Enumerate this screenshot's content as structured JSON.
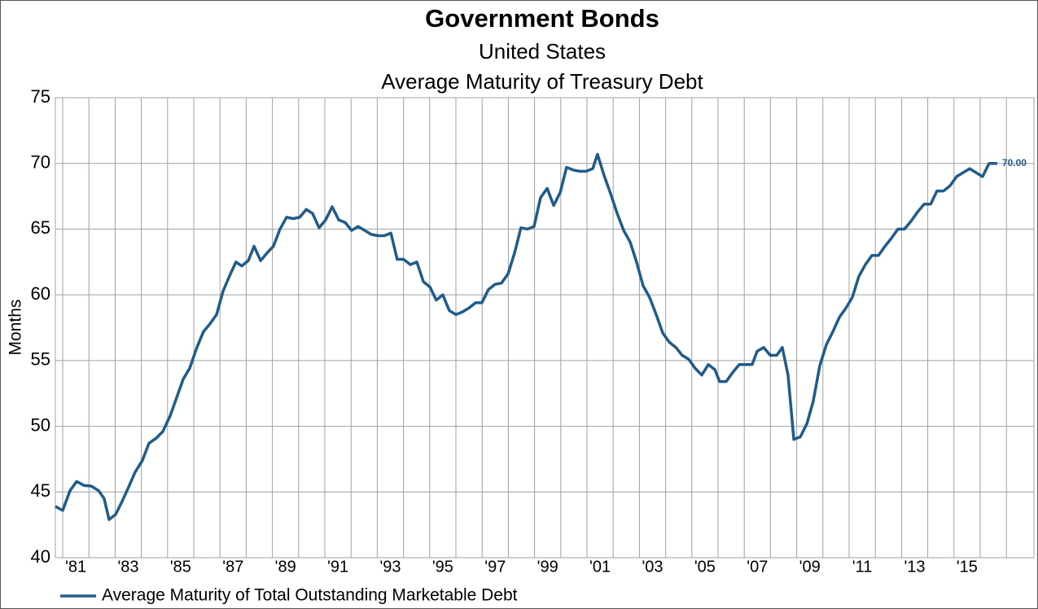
{
  "chart_data": {
    "type": "line",
    "title": "Government Bonds",
    "subtitle": [
      "United States",
      "Average Maturity of Treasury Debt"
    ],
    "y_label": "Months",
    "ylim": [
      40,
      75
    ],
    "yticks": [
      40,
      45,
      50,
      55,
      60,
      65,
      70,
      75
    ],
    "xlim": [
      1980.72,
      2018.05
    ],
    "xticks": [
      {
        "value": 1981.5,
        "label": "'81"
      },
      {
        "value": 1983.5,
        "label": "'83"
      },
      {
        "value": 1985.5,
        "label": "'85"
      },
      {
        "value": 1987.5,
        "label": "'87"
      },
      {
        "value": 1989.5,
        "label": "'89"
      },
      {
        "value": 1991.5,
        "label": "'91"
      },
      {
        "value": 1993.5,
        "label": "'93"
      },
      {
        "value": 1995.5,
        "label": "'95"
      },
      {
        "value": 1997.5,
        "label": "'97"
      },
      {
        "value": 1999.5,
        "label": "'99"
      },
      {
        "value": 2001.5,
        "label": "'01"
      },
      {
        "value": 2003.5,
        "label": "'03"
      },
      {
        "value": 2005.5,
        "label": "'05"
      },
      {
        "value": 2007.5,
        "label": "'07"
      },
      {
        "value": 2009.5,
        "label": "'09"
      },
      {
        "value": 2011.5,
        "label": "'11"
      },
      {
        "value": 2013.5,
        "label": "'13"
      },
      {
        "value": 2015.5,
        "label": "'15"
      }
    ],
    "xminorticks": [
      1981,
      1982,
      1983,
      1984,
      1985,
      1986,
      1987,
      1988,
      1989,
      1990,
      1991,
      1992,
      1993,
      1994,
      1995,
      1996,
      1997,
      1998,
      1999,
      2000,
      2001,
      2002,
      2003,
      2004,
      2005,
      2006,
      2007,
      2008,
      2009,
      2010,
      2011,
      2012,
      2013,
      2014,
      2015,
      2016,
      2017
    ],
    "grid": true,
    "legend": "bottom-left",
    "series": [
      {
        "name": "Average Maturity of Total Outstanding Marketable Debt",
        "color": "#1f5c8b",
        "x": [
          1980.72,
          1981.0,
          1981.28,
          1981.53,
          1981.81,
          1982.09,
          1982.37,
          1982.58,
          1982.77,
          1983.02,
          1983.27,
          1983.52,
          1983.76,
          1984.04,
          1984.29,
          1984.57,
          1984.82,
          1985.1,
          1985.35,
          1985.6,
          1985.84,
          1986.12,
          1986.37,
          1986.62,
          1986.87,
          1987.12,
          1987.4,
          1987.61,
          1987.83,
          1988.08,
          1988.3,
          1988.55,
          1988.8,
          1989.04,
          1989.29,
          1989.54,
          1989.79,
          1990.04,
          1990.29,
          1990.53,
          1990.78,
          1991.03,
          1991.28,
          1991.53,
          1991.78,
          1992.02,
          1992.27,
          1992.52,
          1992.77,
          1993.02,
          1993.27,
          1993.52,
          1993.76,
          1994.01,
          1994.26,
          1994.51,
          1994.76,
          1995.01,
          1995.25,
          1995.5,
          1995.75,
          1996.0,
          1996.25,
          1996.5,
          1996.75,
          1996.99,
          1997.24,
          1997.49,
          1997.74,
          1997.99,
          1998.24,
          1998.48,
          1998.73,
          1998.98,
          1999.23,
          1999.48,
          1999.73,
          1999.98,
          2000.22,
          2000.47,
          2000.72,
          2000.97,
          2001.22,
          2001.4,
          2001.65,
          2001.9,
          2002.15,
          2002.4,
          2002.65,
          2002.89,
          2003.14,
          2003.39,
          2003.64,
          2003.89,
          2004.14,
          2004.39,
          2004.63,
          2004.88,
          2005.13,
          2005.38,
          2005.63,
          2005.88,
          2006.06,
          2006.31,
          2006.56,
          2006.81,
          2007.06,
          2007.3,
          2007.49,
          2007.74,
          2007.99,
          2008.24,
          2008.45,
          2008.67,
          2008.89,
          2009.14,
          2009.39,
          2009.63,
          2009.88,
          2010.13,
          2010.38,
          2010.63,
          2010.88,
          2011.12,
          2011.37,
          2011.62,
          2011.87,
          2012.12,
          2012.37,
          2012.61,
          2012.86,
          2013.11,
          2013.36,
          2013.61,
          2013.86,
          2014.11,
          2014.35,
          2014.6,
          2014.85,
          2015.1,
          2015.35,
          2015.6,
          2015.84,
          2016.09,
          2016.34,
          2016.65
        ],
        "values": [
          43.9,
          43.6,
          45.1,
          45.8,
          45.5,
          45.45,
          45.1,
          44.5,
          42.9,
          43.3,
          44.3,
          45.4,
          46.5,
          47.4,
          48.7,
          49.1,
          49.6,
          50.8,
          52.2,
          53.6,
          54.4,
          56.0,
          57.2,
          57.8,
          58.5,
          60.3,
          61.6,
          62.5,
          62.2,
          62.6,
          63.7,
          62.6,
          63.2,
          63.7,
          65.0,
          65.9,
          65.8,
          65.9,
          66.5,
          66.2,
          65.1,
          65.7,
          66.7,
          65.7,
          65.5,
          64.9,
          65.2,
          64.9,
          64.6,
          64.5,
          64.5,
          64.7,
          62.7,
          62.7,
          62.3,
          62.5,
          61.0,
          60.6,
          59.6,
          60.0,
          58.8,
          58.5,
          58.7,
          59.0,
          59.4,
          59.4,
          60.4,
          60.8,
          60.9,
          61.6,
          63.2,
          65.1,
          65.0,
          65.2,
          67.4,
          68.1,
          66.8,
          67.8,
          69.7,
          69.5,
          69.4,
          69.4,
          69.6,
          70.7,
          69.1,
          67.7,
          66.2,
          64.9,
          64.0,
          62.5,
          60.7,
          59.8,
          58.5,
          57.1,
          56.4,
          56.0,
          55.4,
          55.1,
          54.4,
          53.9,
          54.7,
          54.3,
          53.4,
          53.4,
          54.1,
          54.7,
          54.7,
          54.7,
          55.7,
          56.0,
          55.4,
          55.4,
          56.0,
          53.9,
          49.0,
          49.2,
          50.2,
          51.9,
          54.6,
          56.2,
          57.2,
          58.3,
          59.0,
          59.8,
          61.4,
          62.3,
          63.0,
          63.0,
          63.7,
          64.3,
          65.0,
          65.0,
          65.6,
          66.3,
          66.9,
          66.9,
          67.9,
          67.9,
          68.3,
          69.0,
          69.3,
          69.6,
          69.3,
          69.0,
          70.0,
          70.0
        ]
      }
    ],
    "annotations": [
      {
        "x": 2016.65,
        "value": 70,
        "label": "70.00"
      }
    ]
  }
}
